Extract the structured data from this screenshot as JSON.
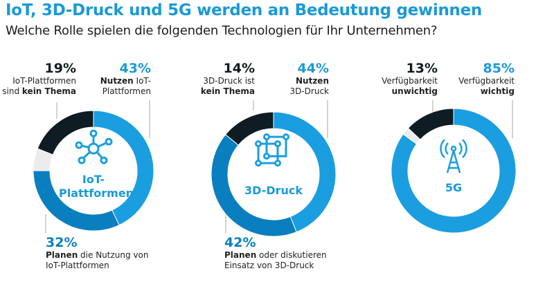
{
  "title": "IoT, 3D-Druck und 5G werden an Bedeutung gewinnen",
  "subtitle": "Welche Rolle spielen die folgenden Technologien für Ihr Unternehmen?",
  "colors": {
    "nutzen": "#1a9ee0",
    "planen": "#0a7fc0",
    "kein_thema": "#0f1c24",
    "rest": "#ececec"
  },
  "chart_data": [
    {
      "type": "pie",
      "center_label": "IoT-Plattformen",
      "icon": "network-hub-icon",
      "segments": [
        {
          "key": "nutzen",
          "value": 43
        },
        {
          "key": "planen",
          "value": 32
        },
        {
          "key": "rest",
          "value": 6
        },
        {
          "key": "kein_thema",
          "value": 19
        }
      ],
      "labels": {
        "a_pct": "19%",
        "a_l1": "IoT-Plattformen",
        "a_l2n": "sind ",
        "a_l2b": "kein Thema",
        "b_pct": "43%",
        "b_l1b": "Nutzen",
        "b_l1n": " IoT-",
        "b_l2": "Plattformen",
        "c_pct": "32%",
        "c_l1b": "Planen",
        "c_l1n": " die Nutzung von",
        "c_l2": "IoT-Plattformen"
      }
    },
    {
      "type": "pie",
      "center_label": "3D-Druck",
      "icon": "cube-icon",
      "segments": [
        {
          "key": "nutzen",
          "value": 44
        },
        {
          "key": "planen",
          "value": 42
        },
        {
          "key": "kein_thema",
          "value": 14
        }
      ],
      "labels": {
        "a_pct": "14%",
        "a_l1": "3D-Druck ist",
        "a_l2b": "kein Thema",
        "b_pct": "44%",
        "b_l1b": "Nutzen",
        "b_l2": "3D-Druck",
        "c_pct": "42%",
        "c_l1b": "Planen",
        "c_l1n": " oder diskutieren",
        "c_l2": "Einsatz von 3D-Druck"
      }
    },
    {
      "type": "pie",
      "center_label": "5G",
      "icon": "antenna-icon",
      "segments": [
        {
          "key": "nutzen",
          "value": 85
        },
        {
          "key": "rest",
          "value": 2
        },
        {
          "key": "kein_thema",
          "value": 13
        }
      ],
      "labels": {
        "a_pct": "13%",
        "a_l1": "Verfügbarkeit",
        "a_l2b": "unwichtig",
        "b_pct": "85%",
        "b_l1": "Verfügbarkeit",
        "b_l2b": "wichtig"
      }
    }
  ]
}
